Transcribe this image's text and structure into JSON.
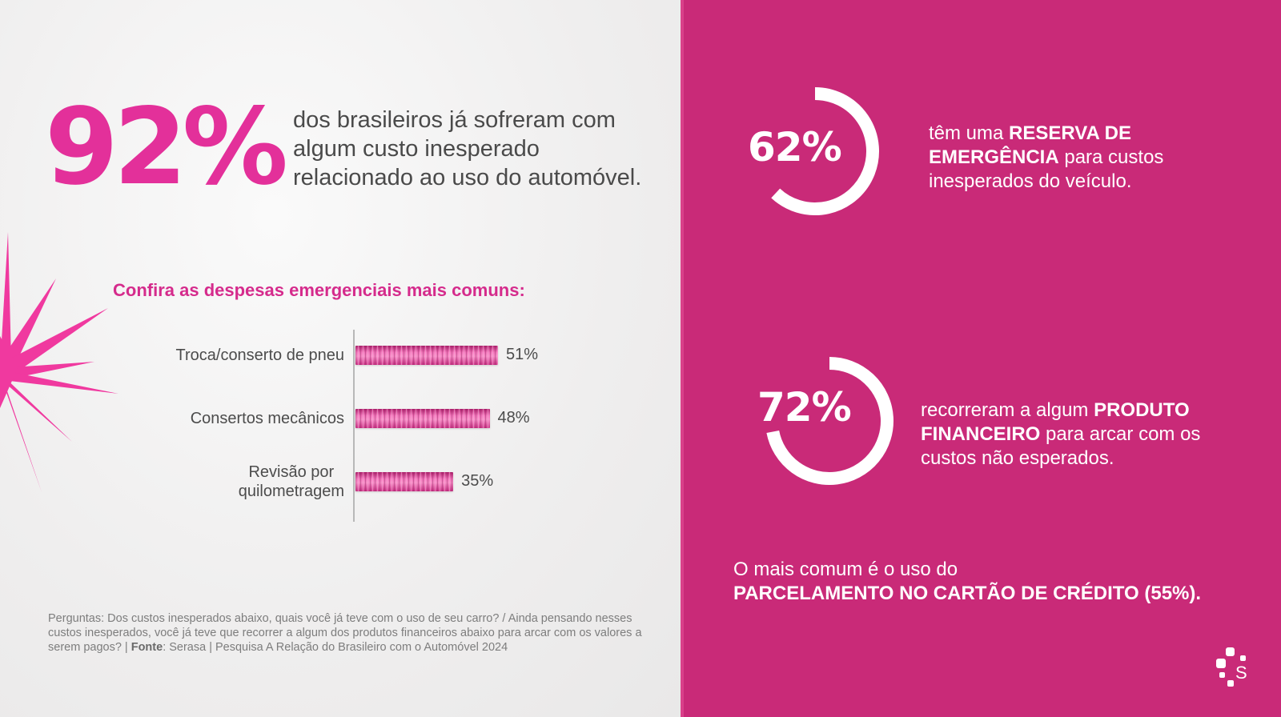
{
  "colors": {
    "accent_pink": "#e3309a",
    "panel_pink": "#c92a78",
    "subtitle_pink": "#d52b8c",
    "text_gray": "#4a4a4a",
    "white": "#ffffff"
  },
  "headline": {
    "big_percent": "92%",
    "text": "dos brasileiros já sofreram com algum custo inesperado relacionado ao uso do automóvel."
  },
  "subtitle": "Confira as despesas emergenciais mais comuns:",
  "chart_data": {
    "type": "bar",
    "orientation": "horizontal",
    "title": "Confira as despesas emergenciais mais comuns:",
    "categories": [
      "Troca/conserto de pneu",
      "Consertos mecânicos",
      "Revisão por quilometragem"
    ],
    "values": [
      51,
      48,
      35
    ],
    "value_labels": [
      "51%",
      "48%",
      "35%"
    ],
    "xlabel": "",
    "ylabel": "",
    "xlim": [
      0,
      100
    ],
    "grid": false,
    "unit": "%"
  },
  "stats": [
    {
      "percent_label": "62%",
      "value": 62,
      "text_pre": "têm uma ",
      "text_bold": "RESERVA DE EMERGÊNCIA",
      "text_post": " para custos inesperados do veículo."
    },
    {
      "percent_label": "72%",
      "value": 72,
      "text_pre": "recorreram  a algum ",
      "text_bold": "PRODUTO FINANCEIRO",
      "text_post": " para arcar com os custos não esperados."
    }
  ],
  "highlight": {
    "line1": "O mais comum é o uso do",
    "line2": "PARCELAMENTO NO CARTÃO DE CRÉDITO (55%)."
  },
  "footnote": {
    "questions": "Perguntas: Dos custos inesperados abaixo, quais você já teve com o uso de seu carro? / Ainda pensando nesses custos inesperados, você já teve que recorrer a algum dos produtos financeiros abaixo para arcar com os valores a serem pagos?  |  ",
    "source_label": "Fonte",
    "source_text": ": Serasa | Pesquisa A Relação do Brasileiro com o Automóvel 2024"
  },
  "logo": {
    "icon": "serasa-logo-icon",
    "letter": "S"
  }
}
